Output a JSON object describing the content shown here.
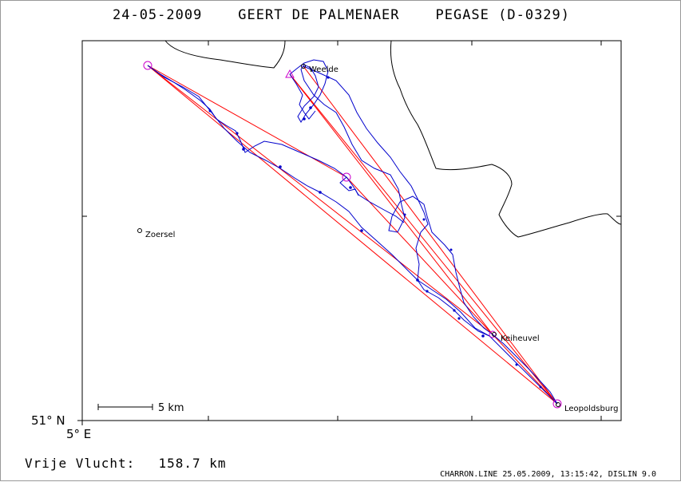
{
  "header": {
    "date": "24-05-2009",
    "pilot": "GEERT DE PALMENAER",
    "glider": "PEGASE (D-0329)"
  },
  "places": [
    {
      "name": "Weelde",
      "label": "Weelde"
    },
    {
      "name": "Zoersel",
      "label": "Zoersel"
    },
    {
      "name": "Keiheuvel",
      "label": "Keiheuvel"
    },
    {
      "name": "Leopoldsburg",
      "label": "Leopoldsburg"
    }
  ],
  "axes": {
    "lat_label": "51° N",
    "lon_label": "5° E"
  },
  "scale_bar": {
    "label": "5 km"
  },
  "summary": {
    "free_flight_label": "Vrije Vlucht:",
    "free_flight_value": "158.7 km"
  },
  "credit": "CHARRON.LINE 25.05.2009, 13:15:42, DISLIN 9.0",
  "colors": {
    "track": "#0000cc",
    "task_lines": "#ff0000",
    "turnpoints": "#cc00cc",
    "border": "#000000"
  }
}
